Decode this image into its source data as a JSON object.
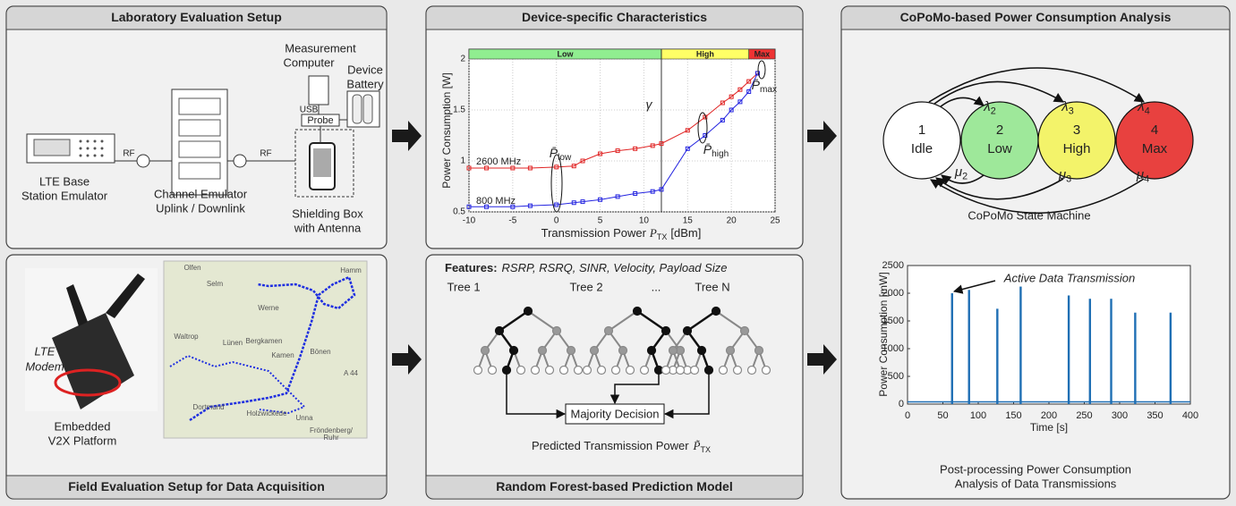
{
  "lab_setup": {
    "title": "Laboratory Evaluation Setup",
    "measurement_computer": [
      "Measurement",
      "Computer"
    ],
    "device_battery": [
      "Device",
      "Battery"
    ],
    "usb": "USB",
    "probe": "Probe",
    "rf_left": "RF",
    "rf_right": "RF",
    "base_station": [
      "LTE Base",
      "Station Emulator"
    ],
    "channel_emulator": [
      "Channel Emulator",
      "Uplink / Downlink"
    ],
    "shielding_box": [
      "Shielding Box",
      "with Antenna"
    ]
  },
  "field_setup": {
    "title": "Field Evaluation Setup for Data Acquisition",
    "modem": [
      "LTE",
      "Modem"
    ],
    "platform": [
      "Embedded",
      "V2X Platform"
    ],
    "map_places": [
      "Olfen",
      "Selm",
      "Werne",
      "Hamm",
      "Waltrop",
      "Lünen",
      "Bergkamen",
      "Kamen",
      "Bönen",
      "Dortmund",
      "Unna",
      "Holzwickede",
      "A 44",
      "Fröndenberg/",
      "Ruhr"
    ]
  },
  "prediction_model": {
    "title": "Random Forest-based Prediction Model",
    "features_label": "Features:",
    "features": "RSRP, RSRQ, SINR, Velocity, Payload Size",
    "trees": [
      "Tree 1",
      "Tree 2",
      "...",
      "Tree N"
    ],
    "decision": "Majority Decision",
    "output": {
      "text": "Predicted Transmission Power",
      "symbol": "P̃",
      "sub": "TX"
    }
  },
  "state_machine": {
    "title": "CoPoMo-based Power Consumption Analysis",
    "caption": "CoPoMo State Machine",
    "nodes": [
      {
        "id": "1",
        "label": "Idle",
        "color": "#ffffff"
      },
      {
        "id": "2",
        "label": "Low",
        "color": "#9ee89a"
      },
      {
        "id": "3",
        "label": "High",
        "color": "#f3f36a"
      },
      {
        "id": "4",
        "label": "Max",
        "color": "#e8413f"
      }
    ],
    "arrival": [
      {
        "symbol": "λ",
        "sub": "2"
      },
      {
        "symbol": "λ",
        "sub": "3"
      },
      {
        "symbol": "λ",
        "sub": "4"
      }
    ],
    "departure": [
      {
        "symbol": "μ",
        "sub": "2"
      },
      {
        "symbol": "μ",
        "sub": "3"
      },
      {
        "symbol": "μ",
        "sub": "4"
      }
    ]
  },
  "chart_data": [
    {
      "type": "line",
      "title": "Device-specific Characteristics",
      "x_label": {
        "text": "Transmission Power",
        "symbol": "P",
        "sub": "TX",
        "unit": "[dBm]"
      },
      "y_label": "Power Consumption [W]",
      "x": [
        -10,
        -8,
        -5,
        -3,
        0,
        2,
        3,
        5,
        7,
        9,
        11,
        12,
        15,
        17,
        19,
        20,
        21,
        22,
        23
      ],
      "series": [
        {
          "name": "2600 MHz",
          "color": "#e02424",
          "values": [
            0.93,
            0.93,
            0.93,
            0.93,
            0.94,
            0.95,
            1.0,
            1.07,
            1.1,
            1.12,
            1.15,
            1.17,
            1.3,
            1.43,
            1.57,
            1.63,
            1.7,
            1.78,
            1.86
          ]
        },
        {
          "name": "800 MHz",
          "color": "#2424e0",
          "values": [
            0.55,
            0.55,
            0.55,
            0.56,
            0.57,
            0.59,
            0.6,
            0.62,
            0.65,
            0.68,
            0.7,
            0.72,
            1.12,
            1.25,
            1.4,
            1.5,
            1.58,
            1.68,
            1.86
          ]
        }
      ],
      "xlim": [
        -10,
        25
      ],
      "xticks": [
        -10,
        -5,
        0,
        5,
        10,
        15,
        20,
        25
      ],
      "ylim": [
        0.5,
        2
      ],
      "yticks": [
        0.5,
        1,
        1.5,
        2
      ],
      "grid": true,
      "regions": [
        {
          "label": "Low",
          "from": -10,
          "to": 12,
          "color": "#90ee90"
        },
        {
          "label": "High",
          "from": 12,
          "to": 22,
          "color": "#ffff66"
        },
        {
          "label": "Max",
          "from": 22,
          "to": 25,
          "color": "#ee3333"
        }
      ],
      "threshold": {
        "label": "γ",
        "value": 12
      },
      "annotations": [
        {
          "symbol": "P̄",
          "sub": "low"
        },
        {
          "symbol": "P̄",
          "sub": "high"
        },
        {
          "symbol": "P̄",
          "sub": "max"
        }
      ]
    },
    {
      "type": "bar",
      "y_label": "Power Consumption [mW]",
      "x_label": "Time [s]",
      "x": [
        63,
        87,
        127,
        160,
        228,
        258,
        288,
        322,
        372
      ],
      "values": [
        2000,
        2060,
        1720,
        2120,
        1960,
        1900,
        1900,
        1650,
        1650
      ],
      "baseline": 40,
      "color": "#1f6fb4",
      "xlim": [
        0,
        400
      ],
      "xticks": [
        0,
        50,
        100,
        150,
        200,
        250,
        300,
        350,
        400
      ],
      "ylim": [
        0,
        2500
      ],
      "yticks": [
        0,
        500,
        1000,
        1500,
        2000,
        2500
      ],
      "annotation": "Active Data Transmission",
      "caption": [
        "Post-processing Power Consumption",
        "Analysis of Data Transmissions"
      ]
    }
  ]
}
